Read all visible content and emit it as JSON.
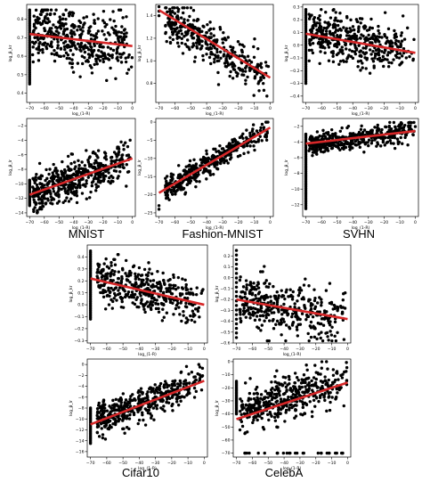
{
  "chart_data": [
    {
      "id": "mnist-kr",
      "type": "scatter",
      "dataset": "MNIST",
      "panel_row": 1,
      "panel_col": 1,
      "xlabel": "log_(1-R)",
      "ylabel": "log_β_kr",
      "xlim": [
        -72,
        2
      ],
      "ylim": [
        0.35,
        0.88
      ],
      "xticks": [
        -70,
        -60,
        -50,
        -40,
        -30,
        -20,
        -10,
        0
      ],
      "xtick_labels": [
        "−70",
        "−60",
        "−50",
        "−40",
        "−30",
        "−20",
        "−10",
        "0"
      ],
      "yticks": [
        0.4,
        0.5,
        0.6,
        0.7,
        0.8
      ],
      "ytick_labels": [
        "0.4",
        "0.5",
        "0.6",
        "0.7",
        "0.8"
      ],
      "trend": {
        "x": [
          -70,
          0
        ],
        "y": [
          0.72,
          0.655
        ]
      },
      "cloud": {
        "x_range": [
          -68,
          0
        ],
        "y_mean_at_xmin": 0.73,
        "y_mean_at_xmax": 0.65,
        "y_spread": 0.08,
        "y_min": 0.38,
        "y_max": 0.85,
        "count": 420,
        "seed": 11
      },
      "stack": {
        "x": -70,
        "y_range": [
          0.45,
          0.85
        ],
        "count": 40
      }
    },
    {
      "id": "fashion-kr",
      "type": "scatter",
      "dataset": "Fashion-MNIST",
      "panel_row": 1,
      "panel_col": 2,
      "xlabel": "log_(1-R)",
      "ylabel": "log_β_kr",
      "xlim": [
        -72,
        2
      ],
      "ylim": [
        0.63,
        1.5
      ],
      "xticks": [
        -70,
        -60,
        -50,
        -40,
        -30,
        -20,
        -10,
        0
      ],
      "xtick_labels": [
        "−70",
        "−60",
        "−50",
        "−40",
        "−30",
        "−20",
        "−10",
        "0"
      ],
      "yticks": [
        0.8,
        1.0,
        1.2,
        1.4
      ],
      "ytick_labels": [
        "0.8",
        "1.0",
        "1.2",
        "1.4"
      ],
      "trend": {
        "x": [
          -70,
          0
        ],
        "y": [
          1.45,
          0.85
        ]
      },
      "cloud": {
        "x_range": [
          -66,
          0
        ],
        "y_mean_at_xmin": 1.38,
        "y_mean_at_xmax": 0.86,
        "y_spread": 0.09,
        "y_min": 0.65,
        "y_max": 1.47,
        "count": 380,
        "seed": 23
      },
      "stack": {
        "x": -70,
        "y_range": [
          1.4,
          1.48
        ],
        "count": 3
      }
    },
    {
      "id": "svhn-kr",
      "type": "scatter",
      "dataset": "SVHN",
      "panel_row": 1,
      "panel_col": 3,
      "xlabel": "log_(1-R)",
      "ylabel": "log_β_kr",
      "xlim": [
        -72,
        2
      ],
      "ylim": [
        -0.45,
        0.32
      ],
      "xticks": [
        -70,
        -60,
        -50,
        -40,
        -30,
        -20,
        -10,
        0
      ],
      "xtick_labels": [
        "−70",
        "−60",
        "−50",
        "−40",
        "−30",
        "−20",
        "−10",
        "0"
      ],
      "yticks": [
        -0.4,
        -0.3,
        -0.2,
        -0.1,
        0.0,
        0.1,
        0.2,
        0.3
      ],
      "ytick_labels": [
        "−0.4",
        "−0.3",
        "−0.2",
        "−0.1",
        "0.0",
        "0.1",
        "0.2",
        "0.3"
      ],
      "trend": {
        "x": [
          -70,
          0
        ],
        "y": [
          0.09,
          -0.06
        ]
      },
      "cloud": {
        "x_range": [
          -68,
          0
        ],
        "y_mean_at_xmin": 0.09,
        "y_mean_at_xmax": -0.06,
        "y_spread": 0.09,
        "y_min": -0.4,
        "y_max": 0.28,
        "count": 420,
        "seed": 37
      },
      "stack": {
        "x": -70,
        "y_range": [
          -0.3,
          0.28
        ],
        "count": 40
      }
    },
    {
      "id": "mnist-lr",
      "type": "scatter",
      "dataset": "MNIST",
      "panel_row": 2,
      "panel_col": 1,
      "xlabel": "log_(1-R)",
      "ylabel": "log_β_lr",
      "xlim": [
        -72,
        2
      ],
      "ylim": [
        -14.5,
        -1
      ],
      "xticks": [
        -70,
        -60,
        -50,
        -40,
        -30,
        -20,
        -10,
        0
      ],
      "xtick_labels": [
        "−70",
        "−60",
        "−50",
        "−40",
        "−30",
        "−20",
        "−10",
        "0"
      ],
      "yticks": [
        -14,
        -12,
        -10,
        -8,
        -6,
        -4,
        -2
      ],
      "ytick_labels": [
        "−14",
        "−12",
        "−10",
        "−8",
        "−6",
        "−4",
        "−2"
      ],
      "trend": {
        "x": [
          -70,
          0
        ],
        "y": [
          -11.5,
          -6.5
        ]
      },
      "cloud": {
        "x_range": [
          -68,
          0
        ],
        "y_mean_at_xmin": -11.5,
        "y_mean_at_xmax": -6.5,
        "y_spread": 1.4,
        "y_min": -14,
        "y_max": -1.5,
        "count": 480,
        "seed": 41
      },
      "stack": {
        "x": -70,
        "y_range": [
          -13,
          -9.5
        ],
        "count": 20
      }
    },
    {
      "id": "fashion-lr",
      "type": "scatter",
      "dataset": "Fashion-MNIST",
      "panel_row": 2,
      "panel_col": 2,
      "xlabel": "log_(1-R)",
      "ylabel": "log_β_lr",
      "xlim": [
        -72,
        2
      ],
      "ylim": [
        -26,
        1
      ],
      "xticks": [
        -70,
        -60,
        -50,
        -40,
        -30,
        -20,
        -10,
        0
      ],
      "xtick_labels": [
        "−70",
        "−60",
        "−50",
        "−40",
        "−30",
        "−20",
        "−10",
        "0"
      ],
      "yticks": [
        -25,
        -20,
        -15,
        -10,
        -5,
        0
      ],
      "ytick_labels": [
        "−25",
        "−20",
        "−15",
        "−10",
        "−5",
        "0"
      ],
      "trend": {
        "x": [
          -70,
          0
        ],
        "y": [
          -19.5,
          -1.5
        ]
      },
      "cloud": {
        "x_range": [
          -66,
          0
        ],
        "y_mean_at_xmin": -18.5,
        "y_mean_at_xmax": -1.5,
        "y_spread": 1.6,
        "y_min": -25,
        "y_max": 0,
        "count": 420,
        "seed": 53
      },
      "stack": {
        "x": -70,
        "y_range": [
          -24,
          -23
        ],
        "count": 2
      }
    },
    {
      "id": "svhn-lr",
      "type": "scatter",
      "dataset": "SVHN",
      "panel_row": 2,
      "panel_col": 3,
      "xlabel": "log_(1-R)",
      "ylabel": "log_β_lr",
      "xlim": [
        -72,
        2
      ],
      "ylim": [
        -13.5,
        -1
      ],
      "xticks": [
        -70,
        -60,
        -50,
        -40,
        -30,
        -20,
        -10,
        0
      ],
      "xtick_labels": [
        "−70",
        "−60",
        "−50",
        "−40",
        "−30",
        "−20",
        "−10",
        "0"
      ],
      "yticks": [
        -12,
        -10,
        -8,
        -6,
        -4,
        -2
      ],
      "ytick_labels": [
        "−12",
        "−10",
        "−8",
        "−6",
        "−4",
        "−2"
      ],
      "trend": {
        "x": [
          -70,
          0
        ],
        "y": [
          -4.2,
          -2.6
        ]
      },
      "cloud": {
        "x_range": [
          -68,
          0
        ],
        "y_mean_at_xmin": -4.4,
        "y_mean_at_xmax": -2.5,
        "y_spread": 0.6,
        "y_min": -6,
        "y_max": -1.5,
        "count": 420,
        "seed": 67
      },
      "stack": {
        "x": -70,
        "y_range": [
          -12.5,
          -3
        ],
        "count": 45
      }
    },
    {
      "id": "cifar-kr",
      "type": "scatter",
      "dataset": "Cifar10",
      "panel_row": 3,
      "panel_col": 1,
      "xlabel": "log_(1-R)",
      "ylabel": "log_β_kr",
      "xlim": [
        -72,
        2
      ],
      "ylim": [
        -0.32,
        0.5
      ],
      "xticks": [
        -70,
        -60,
        -50,
        -40,
        -30,
        -20,
        -10,
        0
      ],
      "xtick_labels": [
        "−70",
        "−60",
        "−50",
        "−40",
        "−30",
        "−20",
        "−10",
        "0"
      ],
      "yticks": [
        -0.3,
        -0.2,
        -0.1,
        0.0,
        0.1,
        0.2,
        0.3,
        0.4
      ],
      "ytick_labels": [
        "−0.3",
        "−0.2",
        "−0.1",
        "0.0",
        "0.1",
        "0.2",
        "0.3",
        "0.4"
      ],
      "trend": {
        "x": [
          -70,
          0
        ],
        "y": [
          0.22,
          0.0
        ]
      },
      "cloud": {
        "x_range": [
          -66,
          0
        ],
        "y_mean_at_xmin": 0.22,
        "y_mean_at_xmax": 0.0,
        "y_spread": 0.09,
        "y_min": -0.28,
        "y_max": 0.42,
        "count": 400,
        "seed": 79
      },
      "stack": {
        "x": -70,
        "y_range": [
          -0.12,
          0.45
        ],
        "count": 40
      }
    },
    {
      "id": "celeba-kr",
      "type": "scatter",
      "dataset": "CelebA",
      "panel_row": 3,
      "panel_col": 2,
      "xlabel": "log_(1-R)",
      "ylabel": "log_β_kr",
      "xlim": [
        -72,
        2
      ],
      "ylim": [
        -0.6,
        0.3
      ],
      "xticks": [
        -70,
        -60,
        -50,
        -40,
        -30,
        -20,
        -10,
        0
      ],
      "xtick_labels": [
        "−70",
        "−60",
        "−50",
        "−40",
        "−30",
        "−20",
        "−10",
        "0"
      ],
      "yticks": [
        -0.6,
        -0.5,
        -0.4,
        -0.3,
        -0.2,
        -0.1,
        0.0,
        0.1,
        0.2
      ],
      "ytick_labels": [
        "−0.6",
        "−0.5",
        "−0.4",
        "−0.3",
        "−0.2",
        "−0.1",
        "0.0",
        "0.1",
        "0.2"
      ],
      "trend": {
        "x": [
          -70,
          0
        ],
        "y": [
          -0.2,
          -0.38
        ]
      },
      "cloud": {
        "x_range": [
          -68,
          0
        ],
        "y_mean_at_xmin": -0.2,
        "y_mean_at_xmax": -0.38,
        "y_spread": 0.12,
        "y_min": -0.58,
        "y_max": 0.22,
        "count": 380,
        "seed": 83
      },
      "stack": {
        "x": -70,
        "y_range": [
          -0.55,
          0.25
        ],
        "count": 20
      }
    },
    {
      "id": "cifar-lr",
      "type": "scatter",
      "dataset": "Cifar10",
      "panel_row": 4,
      "panel_col": 1,
      "xlabel": "log_(1-R)",
      "ylabel": "log_β_lr",
      "xlim": [
        -72,
        2
      ],
      "ylim": [
        -17,
        1
      ],
      "xticks": [
        -70,
        -60,
        -50,
        -40,
        -30,
        -20,
        -10,
        0
      ],
      "xtick_labels": [
        "−70",
        "−60",
        "−50",
        "−40",
        "−30",
        "−20",
        "−10",
        "0"
      ],
      "yticks": [
        -16,
        -14,
        -12,
        -10,
        -8,
        -6,
        -4,
        -2,
        0
      ],
      "ytick_labels": [
        "−16",
        "−14",
        "−12",
        "−10",
        "−8",
        "−6",
        "−4",
        "−2",
        "0"
      ],
      "trend": {
        "x": [
          -70,
          0
        ],
        "y": [
          -11,
          -3
        ]
      },
      "cloud": {
        "x_range": [
          -66,
          0
        ],
        "y_mean_at_xmin": -10.5,
        "y_mean_at_xmax": -2.8,
        "y_spread": 1.6,
        "y_min": -16,
        "y_max": 0,
        "count": 440,
        "seed": 97
      },
      "stack": {
        "x": -70,
        "y_range": [
          -14.5,
          -8
        ],
        "count": 25
      }
    },
    {
      "id": "celeba-lr",
      "type": "scatter",
      "dataset": "CelebA",
      "panel_row": 4,
      "panel_col": 2,
      "xlabel": "log_(1-R)",
      "ylabel": "log_β_lr",
      "xlim": [
        -72,
        2
      ],
      "ylim": [
        -73,
        2
      ],
      "xticks": [
        -70,
        -60,
        -50,
        -40,
        -30,
        -20,
        -10,
        0
      ],
      "xtick_labels": [
        "−70",
        "−60",
        "−50",
        "−40",
        "−30",
        "−20",
        "−10",
        "0"
      ],
      "yticks": [
        -70,
        -60,
        -50,
        -40,
        -30,
        -20,
        -10,
        0
      ],
      "ytick_labels": [
        "−70",
        "−60",
        "−50",
        "−40",
        "−30",
        "−20",
        "−10",
        "0"
      ],
      "trend": {
        "x": [
          -70,
          0
        ],
        "y": [
          -44,
          -16
        ]
      },
      "cloud": {
        "x_range": [
          -68,
          0
        ],
        "y_mean_at_xmin": -38,
        "y_mean_at_xmax": -14,
        "y_spread": 8,
        "y_min": -55,
        "y_max": 0,
        "count": 440,
        "seed": 101
      },
      "stack": {
        "x": -70,
        "y_range": [
          -40,
          -15
        ],
        "count": 25
      },
      "extra": {
        "x_range": [
          -68,
          -2
        ],
        "y": -70,
        "count": 28,
        "seed": 7
      }
    }
  ],
  "dataset_labels": {
    "mnist": "MNIST",
    "fashion": "Fashion-MNIST",
    "svhn": "SVHN",
    "cifar": "Cifar10",
    "celeba": "CelebA"
  },
  "colors": {
    "points": "#000000",
    "trend": "#d62728",
    "axes": "#000000"
  }
}
